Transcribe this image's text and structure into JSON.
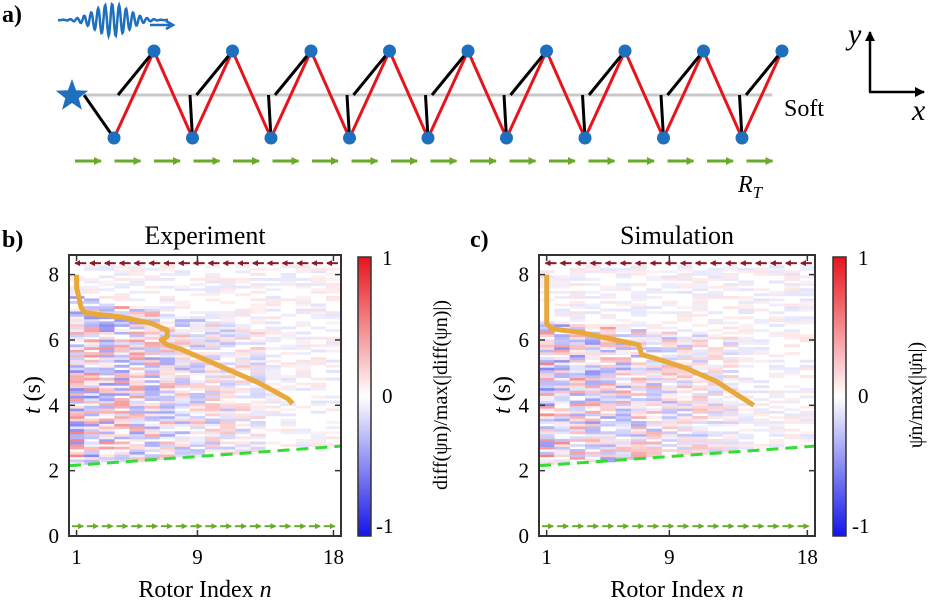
{
  "figure": {
    "panel_a": {
      "label": "a)",
      "soft_label": "Soft",
      "rt_label": "R",
      "rt_sub": "T",
      "axis_x": "x",
      "axis_y": "y",
      "rotor_count": 18,
      "colors": {
        "node": "#1f6fbf",
        "red": "#e8141c",
        "black": "#000000",
        "rail": "#c8c8c8",
        "arrow": "#6aaa2a",
        "star": "#1f6fbf",
        "wave": "#1f6fbf"
      }
    },
    "panels": [
      {
        "id": "b",
        "label": "b)",
        "title": "Experiment",
        "colorbar_label": "diff(ψn)/max(|diff(ψn)|)"
      },
      {
        "id": "c",
        "label": "c)",
        "title": "Simulation",
        "colorbar_label": "ψ̇n/max(|ψ̇n|)"
      }
    ],
    "shared": {
      "xlabel_main": "Rotor Index ",
      "xlabel_var": "n",
      "ylabel_var": "t",
      "ylabel_unit": "(s)",
      "cbar_ticks": [
        "1",
        "0",
        "-1"
      ],
      "colors": {
        "front": "#e8a93a",
        "fit": "#33dd33",
        "arrow_top": "#8b1a2a",
        "arrow_bottom": "#6aaa2a",
        "hi": "#e8141c",
        "lo": "#1414e8"
      }
    }
  },
  "chart_data": [
    {
      "type": "heatmap",
      "title": "Experiment",
      "xlabel": "Rotor Index n",
      "ylabel": "t (s)",
      "colorbar": "diff(ψn)/max(|diff(ψn)|)",
      "xlim": [
        0.5,
        18.5
      ],
      "ylim": [
        0,
        8.6
      ],
      "xticks": [
        1,
        9,
        18
      ],
      "yticks": [
        0,
        2,
        4,
        6,
        8
      ],
      "clim": [
        -1,
        1
      ],
      "front": {
        "x": [
          1.0,
          1.0,
          1.2,
          1.3,
          1.5,
          2,
          3,
          4,
          5,
          6,
          6.5,
          7,
          7,
          6.6,
          7,
          8,
          9,
          10,
          11,
          12,
          13,
          14,
          15,
          15.3
        ],
        "y": [
          8.0,
          7.6,
          7.2,
          7.0,
          6.85,
          6.8,
          6.75,
          6.7,
          6.6,
          6.5,
          6.4,
          6.3,
          6.1,
          6.0,
          5.85,
          5.7,
          5.5,
          5.3,
          5.1,
          4.9,
          4.7,
          4.45,
          4.2,
          4.05
        ]
      },
      "fit_line": {
        "x": [
          0.5,
          18.5
        ],
        "y": [
          2.15,
          2.75
        ]
      },
      "arrow_row_top": 8.35,
      "arrow_row_bottom": 0.3
    },
    {
      "type": "heatmap",
      "title": "Simulation",
      "xlabel": "Rotor Index n",
      "ylabel": "t (s)",
      "colorbar": "ψ̇n/max(|ψ̇n|)",
      "xlim": [
        0.5,
        18.5
      ],
      "ylim": [
        0,
        8.6
      ],
      "xticks": [
        1,
        9,
        18
      ],
      "yticks": [
        0,
        2,
        4,
        6,
        8
      ],
      "clim": [
        -1,
        1
      ],
      "front": {
        "x": [
          1.0,
          1.0,
          1.0,
          1.3,
          2,
          3,
          4,
          5,
          6,
          7,
          7.2,
          8,
          9,
          10,
          11,
          12,
          13,
          14,
          14.5
        ],
        "y": [
          8.0,
          7.0,
          6.5,
          6.35,
          6.3,
          6.25,
          6.15,
          6.05,
          5.95,
          5.85,
          5.55,
          5.45,
          5.3,
          5.15,
          4.95,
          4.75,
          4.45,
          4.15,
          4.0
        ]
      },
      "fit_line": {
        "x": [
          0.5,
          18.5
        ],
        "y": [
          2.15,
          2.75
        ]
      },
      "arrow_row_top": 8.35,
      "arrow_row_bottom": 0.3
    }
  ]
}
